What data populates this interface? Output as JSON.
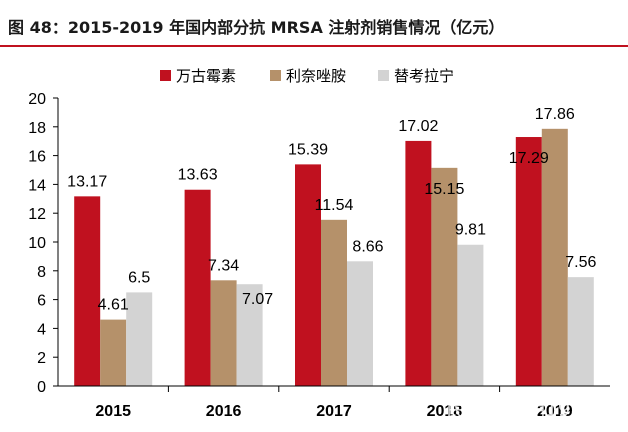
{
  "chart_data": {
    "type": "bar",
    "title": "图 48：2015-2019 年国内部分抗 MRSA 注射剂销售情况（亿元）",
    "categories": [
      "2015",
      "2016",
      "2017",
      "2018",
      "2019"
    ],
    "series": [
      {
        "name": "万古霉素",
        "color": "#c0111f",
        "values": [
          13.17,
          13.63,
          15.39,
          17.02,
          17.29
        ]
      },
      {
        "name": "利奈唑胺",
        "color": "#b5916a",
        "values": [
          4.61,
          7.34,
          11.54,
          15.15,
          17.86
        ]
      },
      {
        "name": "替考拉宁",
        "color": "#d3d3d3",
        "values": [
          6.5,
          7.07,
          8.66,
          9.81,
          7.56
        ]
      }
    ],
    "data_labels": [
      [
        "13.17",
        "4.61",
        "6.5"
      ],
      [
        "13.63",
        "7.34",
        "7.07"
      ],
      [
        "15.39",
        "11.54",
        "8.66"
      ],
      [
        "17.02",
        "15.15",
        "9.81"
      ],
      [
        "17.29",
        "17.86",
        "7.56"
      ]
    ],
    "ylim": [
      0,
      20
    ],
    "yticks": [
      "0",
      "2",
      "4",
      "6",
      "8",
      "10",
      "12",
      "14",
      "16",
      "18",
      "20"
    ],
    "xlabel": "",
    "ylabel": "",
    "legend_position": "top"
  },
  "watermark": "民度 · 申明1988",
  "colors": {
    "title_rule": "#c0111f"
  }
}
